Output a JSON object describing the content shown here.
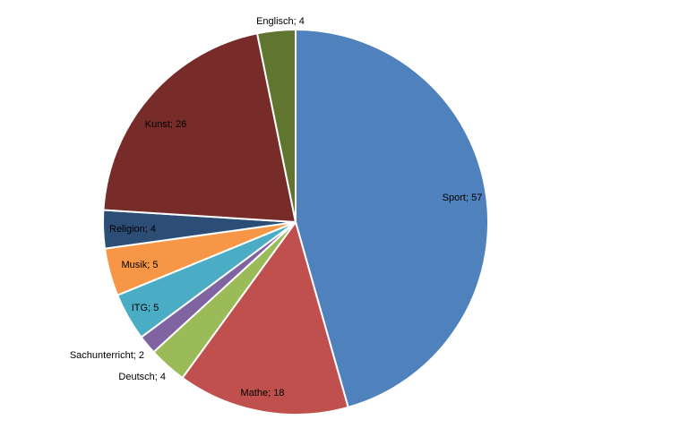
{
  "chart_data": {
    "type": "pie",
    "title": "",
    "start_angle": "top, clockwise",
    "slices": [
      {
        "label": "Sport",
        "value": 57,
        "text": "Sport; 57",
        "color": "#4F81BD"
      },
      {
        "label": "Mathe",
        "value": 18,
        "text": "Mathe; 18",
        "color": "#C0504D"
      },
      {
        "label": "Deutsch",
        "value": 4,
        "text": "Deutsch; 4",
        "color": "#9BBB59"
      },
      {
        "label": "Sachunterricht",
        "value": 2,
        "text": "Sachunterricht; 2",
        "color": "#8064A2"
      },
      {
        "label": "ITG",
        "value": 5,
        "text": "ITG; 5",
        "color": "#4BACC6"
      },
      {
        "label": "Musik",
        "value": 5,
        "text": "Musik; 5",
        "color": "#F79646"
      },
      {
        "label": "Religion",
        "value": 4,
        "text": "Religion; 4",
        "color": "#2C4D75"
      },
      {
        "label": "Kunst",
        "value": 26,
        "text": "Kunst; 26",
        "color": "#772C2A"
      },
      {
        "label": "Englisch",
        "value": 4,
        "text": "Englisch; 4",
        "color": "#5F7530"
      }
    ]
  }
}
